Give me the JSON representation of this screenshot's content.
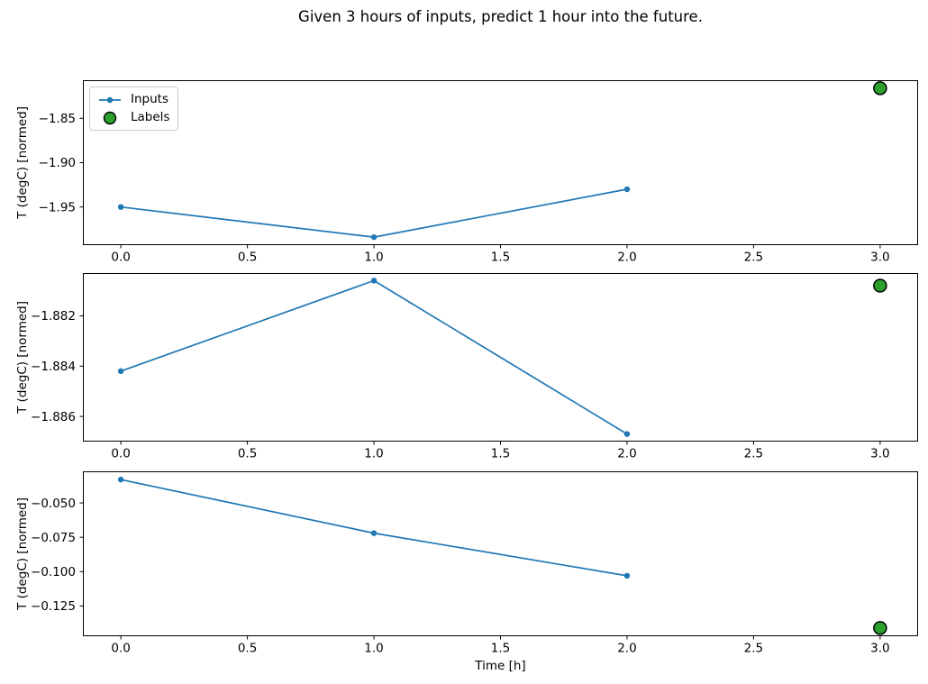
{
  "title": "Given 3 hours of inputs, predict 1 hour into the future.",
  "xlabel": "Time [h]",
  "colors": {
    "inputs_line": "#1f77b4",
    "labels_fill": "#2ca02c",
    "labels_edge": "#000000",
    "axis": "#000000",
    "legend_border": "#cccccc"
  },
  "legend": {
    "position": "upper-left-of-first-subplot",
    "items": [
      {
        "label": "Inputs",
        "marker": "line-with-dot"
      },
      {
        "label": "Labels",
        "marker": "green-circle"
      }
    ]
  },
  "chart_data": [
    {
      "type": "line",
      "ylabel": "T (degC) [normed]",
      "series": [
        {
          "name": "Inputs",
          "x": [
            0,
            1,
            2
          ],
          "values": [
            -1.95,
            -1.984,
            -1.93
          ]
        },
        {
          "name": "Labels",
          "x": [
            3
          ],
          "values": [
            -1.816
          ]
        }
      ],
      "xlim": [
        -0.15,
        3.15
      ],
      "ylim": [
        -1.993,
        -1.807
      ],
      "xticks": {
        "values": [
          0,
          0.5,
          1,
          1.5,
          2,
          2.5,
          3
        ],
        "labels": [
          "0.0",
          "0.5",
          "1.0",
          "1.5",
          "2.0",
          "2.5",
          "3.0"
        ]
      },
      "yticks": {
        "values": [
          -1.85,
          -1.9,
          -1.95
        ],
        "labels": [
          "−1.85",
          "−1.90",
          "−1.95"
        ]
      },
      "grid": false,
      "legend_visible": true
    },
    {
      "type": "line",
      "ylabel": "T (degC) [normed]",
      "series": [
        {
          "name": "Inputs",
          "x": [
            0,
            1,
            2
          ],
          "values": [
            -1.8842,
            -1.8806,
            -1.8867
          ]
        },
        {
          "name": "Labels",
          "x": [
            3
          ],
          "values": [
            -1.8808
          ]
        }
      ],
      "xlim": [
        -0.15,
        3.15
      ],
      "ylim": [
        -1.887,
        -1.8803
      ],
      "xticks": {
        "values": [
          0,
          0.5,
          1,
          1.5,
          2,
          2.5,
          3
        ],
        "labels": [
          "0.0",
          "0.5",
          "1.0",
          "1.5",
          "2.0",
          "2.5",
          "3.0"
        ]
      },
      "yticks": {
        "values": [
          -1.882,
          -1.884,
          -1.886
        ],
        "labels": [
          "−1.882",
          "−1.884",
          "−1.886"
        ]
      },
      "grid": false,
      "legend_visible": false
    },
    {
      "type": "line",
      "ylabel": "T (degC) [normed]",
      "series": [
        {
          "name": "Inputs",
          "x": [
            0,
            1,
            2
          ],
          "values": [
            -0.033,
            -0.072,
            -0.103
          ]
        },
        {
          "name": "Labels",
          "x": [
            3
          ],
          "values": [
            -0.141
          ]
        }
      ],
      "xlim": [
        -0.15,
        3.15
      ],
      "ylim": [
        -0.147,
        -0.027
      ],
      "xticks": {
        "values": [
          0,
          0.5,
          1,
          1.5,
          2,
          2.5,
          3
        ],
        "labels": [
          "0.0",
          "0.5",
          "1.0",
          "1.5",
          "2.0",
          "2.5",
          "3.0"
        ]
      },
      "yticks": {
        "values": [
          -0.05,
          -0.075,
          -0.1,
          -0.125
        ],
        "labels": [
          "−0.050",
          "−0.075",
          "−0.100",
          "−0.125"
        ]
      },
      "grid": false,
      "legend_visible": false
    }
  ]
}
